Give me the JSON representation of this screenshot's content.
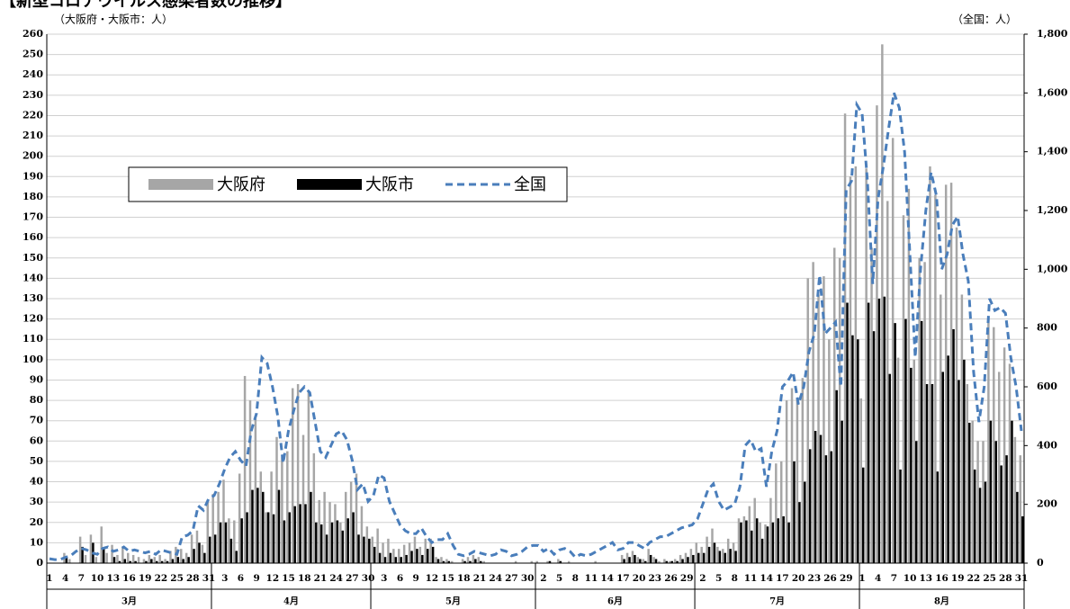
{
  "chart_data": {
    "type": "bar_line",
    "title": "【新型コロナウイルス感染者数の推移】",
    "y_label": "（大阪府・大阪市：人）",
    "y2_label": "（全国：人）",
    "categories": [
      "1",
      null,
      null,
      "4",
      null,
      null,
      "7",
      null,
      null,
      "10",
      null,
      null,
      "13",
      null,
      null,
      "16",
      null,
      null,
      "19",
      null,
      null,
      "22",
      null,
      null,
      "25",
      null,
      null,
      "28",
      null,
      null,
      "31",
      null,
      null,
      "3",
      null,
      null,
      "6",
      null,
      null,
      "9",
      null,
      null,
      "12",
      null,
      null,
      "15",
      null,
      null,
      "18",
      null,
      null,
      "21",
      null,
      null,
      "24",
      null,
      null,
      "27",
      null,
      null,
      "30",
      null,
      null,
      "3",
      null,
      null,
      "6",
      null,
      null,
      "9",
      null,
      null,
      "12",
      null,
      null,
      "15",
      null,
      null,
      "18",
      null,
      null,
      "21",
      null,
      null,
      "24",
      null,
      null,
      "27",
      null,
      null,
      "30",
      null,
      null,
      "2",
      null,
      null,
      "5",
      null,
      null,
      "8",
      null,
      null,
      "11",
      null,
      null,
      "14",
      null,
      null,
      "17",
      null,
      null,
      "20",
      null,
      null,
      "23",
      null,
      null,
      "26",
      null,
      null,
      "29",
      null,
      null,
      "2",
      null,
      null,
      "5",
      null,
      null,
      "8",
      null,
      null,
      "11",
      null,
      null,
      "14",
      null,
      null,
      "17",
      null,
      null,
      "20",
      null,
      null,
      "23",
      null,
      null,
      "26",
      null,
      null,
      "29",
      null,
      null,
      "1",
      null,
      null,
      "4",
      null,
      null,
      "7",
      null,
      null,
      "10",
      null,
      null,
      "13",
      null,
      null,
      "16",
      null,
      null,
      "19",
      null,
      null,
      "22",
      null,
      null,
      "25",
      null,
      null,
      "28",
      null,
      null,
      "31"
    ],
    "months": [
      "3月",
      "4月",
      "5月",
      "6月",
      "7月",
      "8月"
    ],
    "month_days": [
      31,
      30,
      31,
      30,
      31,
      31
    ],
    "series": [
      {
        "name": "大阪府",
        "color": "#a6a6a6",
        "kind": "bar",
        "values": [
          0,
          0,
          0,
          5,
          2,
          0,
          13,
          4,
          14,
          3,
          18,
          5,
          9,
          4,
          8,
          5,
          4,
          3,
          2,
          4,
          3,
          4,
          2,
          6,
          8,
          7,
          5,
          14,
          16,
          9,
          30,
          34,
          35,
          41,
          22,
          21,
          44,
          92,
          80,
          71,
          45,
          25,
          45,
          62,
          52,
          55,
          86,
          88,
          63,
          84,
          54,
          31,
          35,
          30,
          29,
          20,
          35,
          40,
          44,
          28,
          18,
          13,
          17,
          10,
          12,
          7,
          7,
          9,
          10,
          13,
          8,
          12,
          12,
          3,
          3,
          2,
          1,
          0,
          2,
          3,
          4,
          3,
          1,
          0,
          0,
          0,
          0,
          0,
          1,
          0,
          0,
          1,
          1,
          0,
          1,
          0,
          2,
          0,
          1,
          0,
          0,
          0,
          0,
          1,
          0,
          0,
          0,
          0,
          4,
          5,
          6,
          3,
          2,
          7,
          3,
          1,
          2,
          1,
          2,
          4,
          5,
          7,
          10,
          8,
          13,
          17,
          8,
          7,
          12,
          10,
          22,
          23,
          28,
          32,
          20,
          19,
          32,
          49,
          50,
          80,
          86,
          81,
          91,
          140,
          148,
          132,
          141,
          110,
          155,
          150,
          221,
          190,
          195,
          81,
          194,
          155,
          225,
          255,
          178,
          209,
          101,
          171,
          184,
          100,
          150,
          148,
          195,
          181,
          132,
          186,
          187,
          165,
          132,
          88,
          70,
          60,
          60,
          120,
          116,
          94,
          106,
          98,
          62,
          53
        ]
      },
      {
        "name": "大阪市",
        "color": "#000000",
        "kind": "bar",
        "values": [
          0,
          0,
          0,
          3,
          0,
          0,
          8,
          0,
          10,
          0,
          7,
          0,
          3,
          1,
          2,
          1,
          1,
          0,
          1,
          2,
          1,
          1,
          1,
          2,
          3,
          2,
          3,
          7,
          10,
          5,
          13,
          14,
          20,
          20,
          12,
          6,
          22,
          25,
          36,
          37,
          35,
          25,
          24,
          36,
          21,
          25,
          28,
          29,
          29,
          35,
          20,
          19,
          14,
          20,
          21,
          16,
          22,
          25,
          14,
          13,
          12,
          8,
          5,
          3,
          5,
          3,
          3,
          4,
          6,
          7,
          4,
          7,
          8,
          2,
          1,
          1,
          0,
          0,
          1,
          1,
          2,
          1,
          0,
          0,
          0,
          0,
          0,
          0,
          0,
          0,
          0,
          0,
          0,
          0,
          1,
          0,
          1,
          0,
          0,
          0,
          0,
          0,
          0,
          0,
          0,
          0,
          0,
          0,
          2,
          3,
          4,
          2,
          1,
          4,
          2,
          0,
          1,
          1,
          1,
          2,
          3,
          4,
          5,
          5,
          8,
          10,
          6,
          5,
          7,
          6,
          20,
          21,
          16,
          22,
          12,
          18,
          20,
          22,
          23,
          20,
          50,
          30,
          40,
          56,
          65,
          63,
          53,
          55,
          85,
          70,
          128,
          112,
          110,
          47,
          128,
          114,
          130,
          131,
          93,
          118,
          46,
          120,
          96,
          60,
          119,
          88,
          88,
          45,
          94,
          102,
          115,
          90,
          100,
          69,
          46,
          37,
          40,
          70,
          60,
          48,
          53,
          70,
          35,
          23
        ]
      },
      {
        "name": "全国",
        "color": "#4a7ebb",
        "kind": "line",
        "axis": "y2",
        "values": [
          15,
          12,
          12,
          20,
          25,
          40,
          50,
          45,
          35,
          30,
          50,
          55,
          40,
          45,
          55,
          40,
          45,
          40,
          35,
          40,
          30,
          45,
          40,
          35,
          30,
          90,
          95,
          110,
          195,
          180,
          220,
          230,
          270,
          320,
          360,
          380,
          350,
          330,
          450,
          510,
          700,
          680,
          600,
          500,
          340,
          450,
          520,
          580,
          600,
          580,
          480,
          380,
          360,
          400,
          440,
          450,
          420,
          350,
          250,
          270,
          210,
          230,
          300,
          290,
          210,
          170,
          130,
          110,
          100,
          100,
          120,
          90,
          70,
          80,
          80,
          100,
          60,
          30,
          25,
          30,
          40,
          35,
          30,
          25,
          30,
          45,
          40,
          25,
          30,
          40,
          55,
          60,
          60,
          40,
          50,
          30,
          45,
          50,
          40,
          20,
          30,
          25,
          30,
          40,
          50,
          60,
          70,
          45,
          50,
          70,
          70,
          60,
          50,
          70,
          80,
          90,
          90,
          100,
          110,
          120,
          125,
          130,
          150,
          200,
          250,
          270,
          210,
          180,
          190,
          200,
          260,
          400,
          420,
          380,
          390,
          260,
          380,
          450,
          600,
          620,
          650,
          540,
          600,
          720,
          780,
          980,
          780,
          800,
          820,
          600,
          1270,
          1300,
          1560,
          1530,
          1300,
          950,
          1240,
          1350,
          1480,
          1600,
          1550,
          1400,
          1050,
          700,
          1000,
          1200,
          1330,
          1250,
          1000,
          1050,
          1150,
          1180,
          1050,
          960,
          650,
          480,
          600,
          900,
          860,
          870,
          850,
          700,
          600,
          450
        ]
      }
    ],
    "ylim": [
      0,
      260
    ],
    "yticks": [
      0,
      10,
      20,
      30,
      40,
      50,
      60,
      70,
      80,
      90,
      100,
      110,
      120,
      130,
      140,
      150,
      160,
      170,
      180,
      190,
      200,
      210,
      220,
      230,
      240,
      250,
      260
    ],
    "y2lim": [
      0,
      1800
    ],
    "y2ticks": [
      0,
      200,
      400,
      600,
      800,
      {
        "value": 1000,
        "label": "1,000"
      },
      {
        "value": 1200,
        "label": "1,200"
      },
      {
        "value": 1400,
        "label": "1,400"
      },
      {
        "value": 1600,
        "label": "1,600"
      },
      {
        "value": 1800,
        "label": "1,800"
      }
    ],
    "grid": true,
    "legend": "upper-left"
  }
}
